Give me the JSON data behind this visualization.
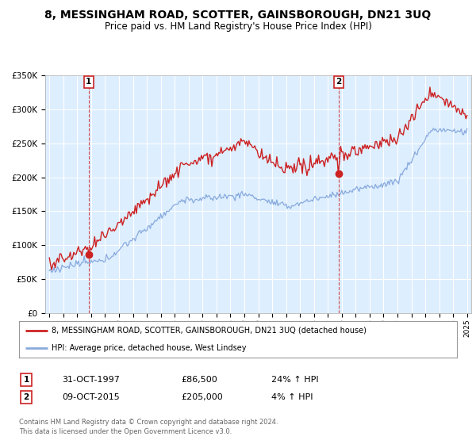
{
  "title": "8, MESSINGHAM ROAD, SCOTTER, GAINSBOROUGH, DN21 3UQ",
  "subtitle": "Price paid vs. HM Land Registry's House Price Index (HPI)",
  "title_fontsize": 10,
  "subtitle_fontsize": 8.5,
  "background_color": "#ffffff",
  "chart_bg_color": "#ddeeff",
  "grid_color": "#ffffff",
  "sale1_date": 1997.83,
  "sale1_price": 86500,
  "sale2_date": 2015.77,
  "sale2_price": 205000,
  "legend_line1": "8, MESSINGHAM ROAD, SCOTTER, GAINSBOROUGH, DN21 3UQ (detached house)",
  "legend_line2": "HPI: Average price, detached house, West Lindsey",
  "footer1": "Contains HM Land Registry data © Crown copyright and database right 2024.",
  "footer2": "This data is licensed under the Open Government Licence v3.0.",
  "ylim_max": 350000,
  "red_color": "#cc2222",
  "blue_color": "#88aadd",
  "sale1_date_str": "31-OCT-1997",
  "sale1_price_str": "£86,500",
  "sale1_pct_str": "24% ↑ HPI",
  "sale2_date_str": "09-OCT-2015",
  "sale2_price_str": "£205,000",
  "sale2_pct_str": "4% ↑ HPI"
}
